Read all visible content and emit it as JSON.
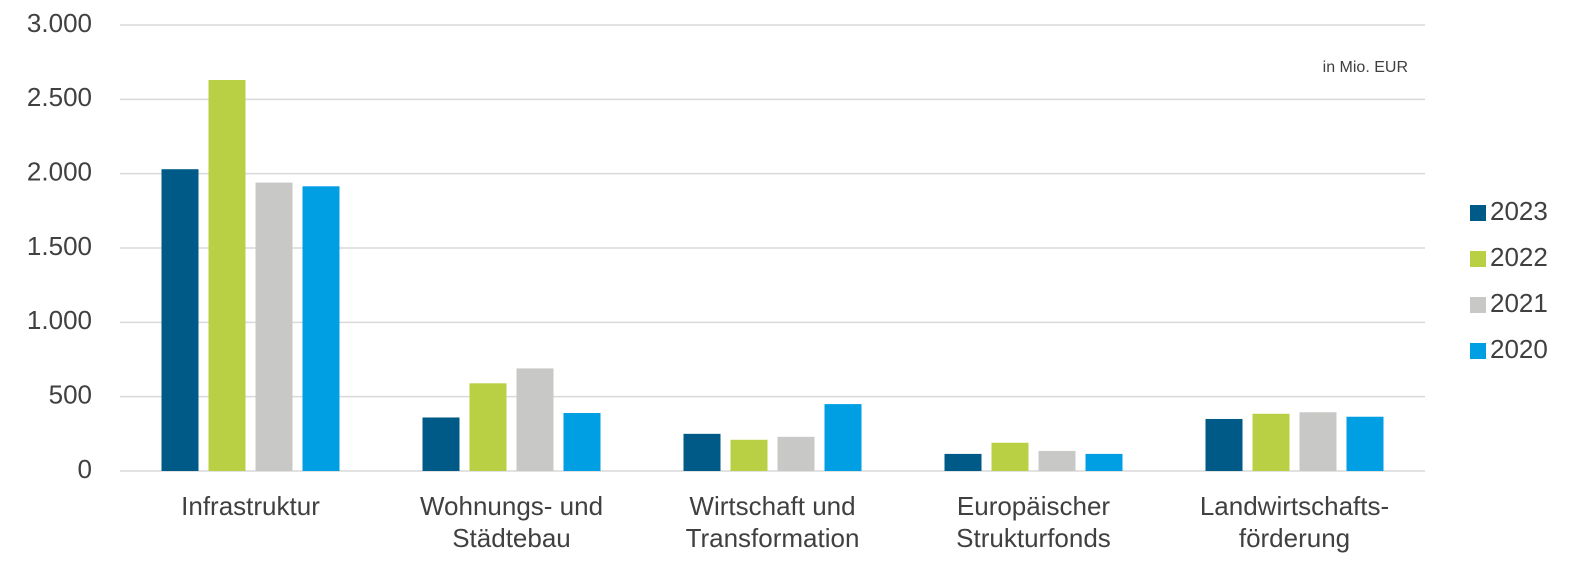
{
  "chart_data": {
    "type": "bar",
    "annotation": "in Mio. EUR",
    "categories": [
      "Infrastruktur",
      "Wohnungs- und\nStädtebau",
      "Wirtschaft und\nTransformation",
      "Europäischer\nStrukturfonds",
      "Landwirtschafts-\nförderung"
    ],
    "series": [
      {
        "name": "2023",
        "color": "#005a87",
        "values": [
          2030,
          360,
          250,
          115,
          350
        ]
      },
      {
        "name": "2022",
        "color": "#b9cf44",
        "values": [
          2630,
          590,
          210,
          190,
          385
        ]
      },
      {
        "name": "2021",
        "color": "#c8c9c7",
        "values": [
          1940,
          690,
          230,
          135,
          395
        ]
      },
      {
        "name": "2020",
        "color": "#009fe3",
        "values": [
          1915,
          390,
          450,
          115,
          365
        ]
      }
    ],
    "ylim": [
      0,
      3000
    ],
    "yticks": [
      0,
      500,
      {
        "value": 1000,
        "label": "1.000"
      },
      {
        "value": 1500,
        "label": "1.500"
      },
      {
        "value": 2000,
        "label": "2.000"
      },
      {
        "value": 2500,
        "label": "2.500"
      },
      {
        "value": 3000,
        "label": "3.000"
      }
    ],
    "grid": true,
    "legend": "right"
  }
}
